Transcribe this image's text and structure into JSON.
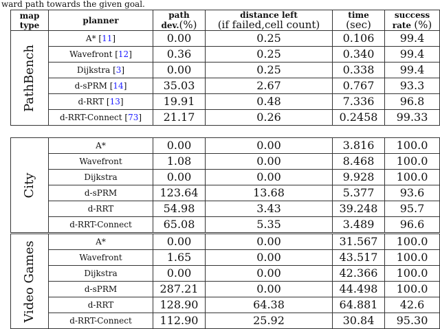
{
  "caption": "ward path towards the given goal.",
  "headers": {
    "map_type": [
      "map",
      "type"
    ],
    "planner": "planner",
    "path_dev": [
      "path",
      "dev.",
      "(%)"
    ],
    "distance_left": [
      "distance left",
      "(if failed,cell count)"
    ],
    "time": [
      "time",
      "(sec)"
    ],
    "success_rate": [
      "success",
      "rate",
      "(%)"
    ]
  },
  "blocks": [
    {
      "map_type": "PathBench",
      "rows": [
        {
          "planner": "A*",
          "ref": "11",
          "path_dev": "0.00",
          "distance_left": "0.25",
          "time": "0.106",
          "success_rate": "99.4"
        },
        {
          "planner": "Wavefront",
          "ref": "12",
          "path_dev": "0.36",
          "distance_left": "0.25",
          "time": "0.340",
          "success_rate": "99.4"
        },
        {
          "planner": "Dijkstra",
          "ref": "3",
          "path_dev": "0.00",
          "distance_left": "0.25",
          "time": "0.338",
          "success_rate": "99.4"
        },
        {
          "planner": "d-sPRM",
          "ref": "14",
          "path_dev": "35.03",
          "distance_left": "2.67",
          "time": "0.767",
          "success_rate": "93.3"
        },
        {
          "planner": "d-RRT",
          "ref": "13",
          "path_dev": "19.91",
          "distance_left": "0.48",
          "time": "7.336",
          "success_rate": "96.8"
        },
        {
          "planner": "d-RRT-Connect",
          "ref": "73",
          "path_dev": "21.17",
          "distance_left": "0.26",
          "time": "0.2458",
          "success_rate": "99.33"
        }
      ]
    },
    {
      "map_type": "City",
      "rows": [
        {
          "planner": "A*",
          "path_dev": "0.00",
          "distance_left": "0.00",
          "time": "3.816",
          "success_rate": "100.0"
        },
        {
          "planner": "Wavefront",
          "path_dev": "1.08",
          "distance_left": "0.00",
          "time": "8.468",
          "success_rate": "100.0"
        },
        {
          "planner": "Dijkstra",
          "path_dev": "0.00",
          "distance_left": "0.00",
          "time": "9.928",
          "success_rate": "100.0"
        },
        {
          "planner": "d-sPRM",
          "path_dev": "123.64",
          "distance_left": "13.68",
          "time": "5.377",
          "success_rate": "93.6"
        },
        {
          "planner": "d-RRT",
          "path_dev": "54.98",
          "distance_left": "3.43",
          "time": "39.248",
          "success_rate": "95.7"
        },
        {
          "planner": "d-RRT-Connect",
          "path_dev": "65.08",
          "distance_left": "5.35",
          "time": "3.489",
          "success_rate": "96.6"
        }
      ]
    },
    {
      "map_type": "Video Games",
      "rows": [
        {
          "planner": "A*",
          "path_dev": "0.00",
          "distance_left": "0.00",
          "time": "31.567",
          "success_rate": "100.0"
        },
        {
          "planner": "Wavefront",
          "path_dev": "1.65",
          "distance_left": "0.00",
          "time": "43.517",
          "success_rate": "100.0"
        },
        {
          "planner": "Dijkstra",
          "path_dev": "0.00",
          "distance_left": "0.00",
          "time": "42.366",
          "success_rate": "100.0"
        },
        {
          "planner": "d-sPRM",
          "path_dev": "287.21",
          "distance_left": "0.00",
          "time": "44.498",
          "success_rate": "100.0"
        },
        {
          "planner": "d-RRT",
          "path_dev": "128.90",
          "distance_left": "64.38",
          "time": "64.881",
          "success_rate": "42.6"
        },
        {
          "planner": "d-RRT-Connect",
          "path_dev": "112.90",
          "distance_left": "25.92",
          "time": "30.84",
          "success_rate": "95.30"
        }
      ]
    }
  ],
  "colors": {
    "reference_link": "#1a1aff",
    "border": "#333333"
  }
}
